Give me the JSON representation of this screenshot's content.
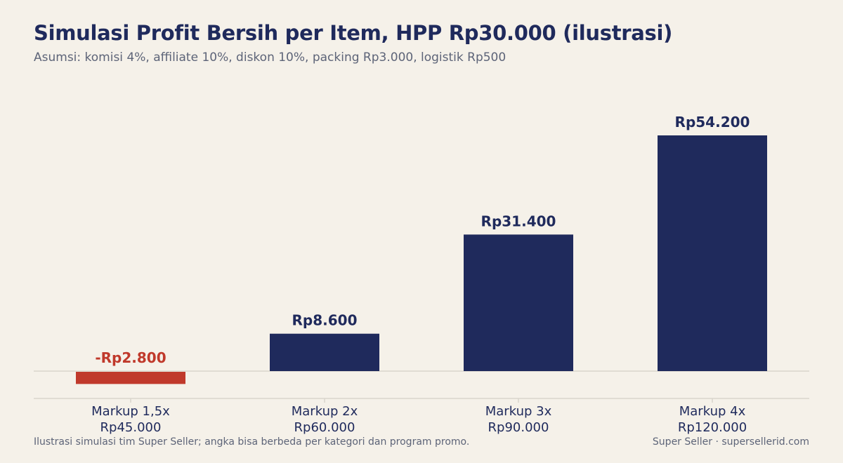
{
  "header": {
    "title": "Simulasi Profit Bersih per Item, HPP Rp30.000 (ilustrasi)",
    "subtitle": "Asumsi: komisi 4%, affiliate 10%, diskon 10%, packing Rp3.000, logistik Rp500"
  },
  "footer": {
    "note": "Ilustrasi simulasi tim Super Seller; angka bisa berbeda per kategori dan program promo.",
    "credit": "Super Seller · supersellerid.com"
  },
  "colors": {
    "positive": "#1f2a5c",
    "negative": "#c0392b",
    "axis": "#d9d5cc"
  },
  "chart_data": {
    "type": "bar",
    "categories": [
      [
        "Markup 1,5x",
        "Rp45.000"
      ],
      [
        "Markup 2x",
        "Rp60.000"
      ],
      [
        "Markup 3x",
        "Rp90.000"
      ],
      [
        "Markup 4x",
        "Rp120.000"
      ]
    ],
    "values": [
      -2800,
      8600,
      31400,
      54200
    ],
    "value_labels": [
      "-Rp2.800",
      "Rp8.600",
      "Rp31.400",
      "Rp54.200"
    ],
    "ylim": [
      -6000,
      56000
    ],
    "grid": false,
    "legend": "none"
  }
}
